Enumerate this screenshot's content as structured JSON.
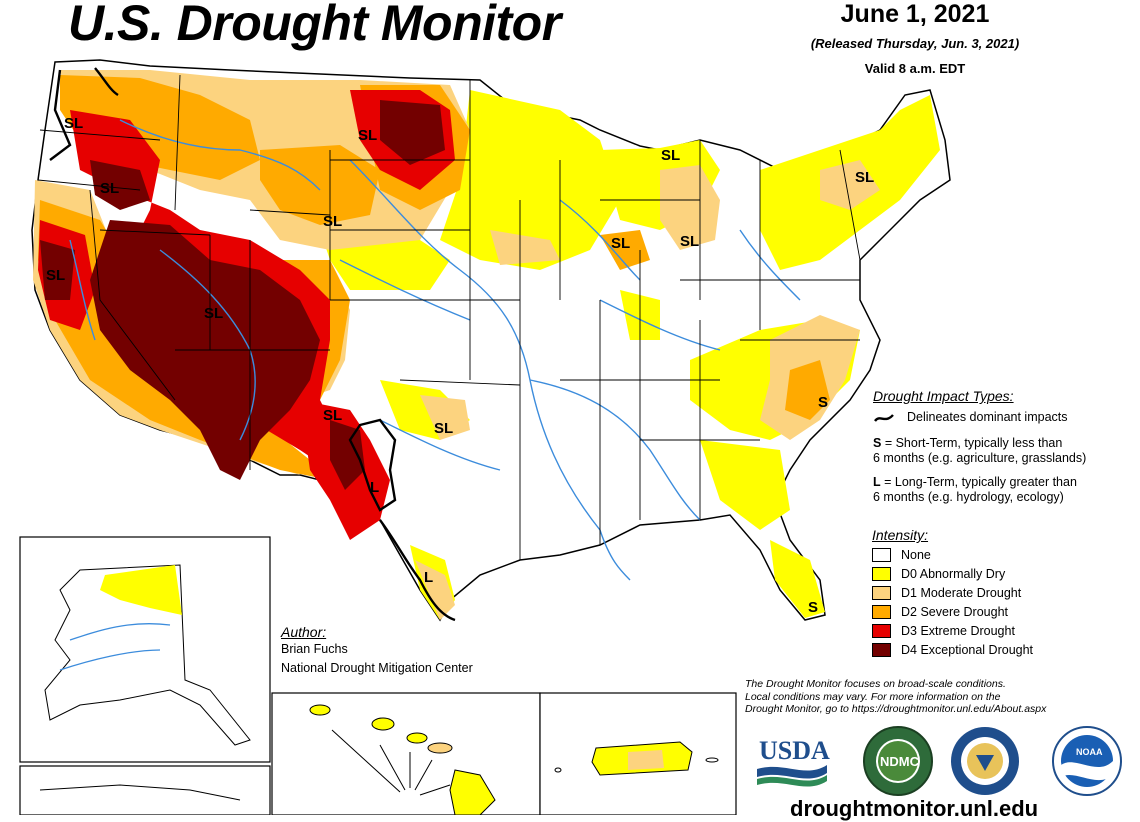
{
  "header": {
    "title": "U.S. Drought Monitor",
    "date": "June 1, 2021",
    "released": "(Released Thursday, Jun. 3, 2021)",
    "valid": "Valid 8 a.m. EDT"
  },
  "impact_legend": {
    "heading": "Drought Impact Types:",
    "delineates": "Delineates dominant impacts",
    "short_term_key": "S",
    "short_term_desc": " = Short-Term, typically less than",
    "short_term_desc2": "6 months (e.g. agriculture, grasslands)",
    "long_term_key": "L",
    "long_term_desc": " = Long-Term, typically greater than",
    "long_term_desc2": "6 months (e.g. hydrology, ecology)"
  },
  "intensity_legend": {
    "heading": "Intensity:",
    "items": [
      {
        "label": "None",
        "color": "#ffffff"
      },
      {
        "label": "D0 Abnormally Dry",
        "color": "#ffff00"
      },
      {
        "label": "D1 Moderate Drought",
        "color": "#fcd37f"
      },
      {
        "label": "D2 Severe Drought",
        "color": "#ffaa00"
      },
      {
        "label": "D3 Extreme Drought",
        "color": "#e60000"
      },
      {
        "label": "D4 Exceptional Drought",
        "color": "#730000"
      }
    ]
  },
  "author": {
    "heading": "Author:",
    "name": "Brian Fuchs",
    "org": "National Drought Mitigation Center"
  },
  "disclaimer": {
    "line1": "The Drought Monitor focuses on broad-scale conditions.",
    "line2": "Local conditions may vary. For more information on the",
    "line3": "Drought Monitor, go to https://droughtmonitor.unl.edu/About.aspx"
  },
  "logos": {
    "usda": "USDA",
    "ndmc": "NDMC",
    "noaa": "NOAA"
  },
  "site_url": "droughtmonitor.unl.edu",
  "map_labels": {
    "s": "S",
    "l": "L",
    "sl": "SL"
  },
  "colors": {
    "none": "#ffffff",
    "d0": "#ffff00",
    "d1": "#fcd37f",
    "d2": "#ffaa00",
    "d3": "#e60000",
    "d4": "#730000",
    "water": "#3c8cdc"
  }
}
